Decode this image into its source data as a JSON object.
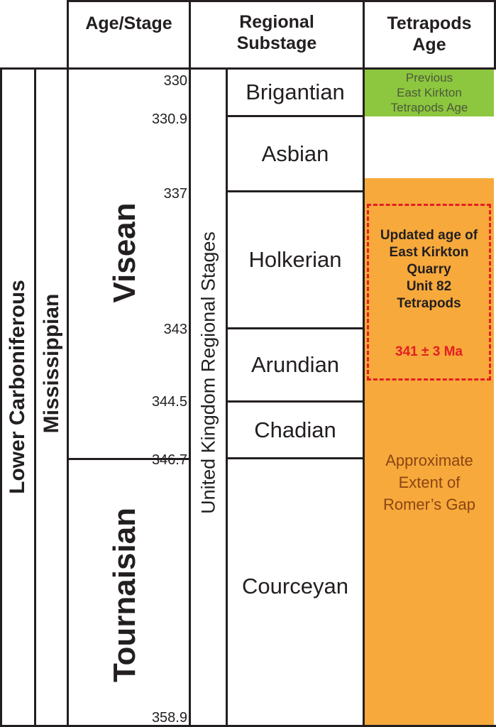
{
  "headers": {
    "age_stage": "Age/Stage",
    "regional_substage": "Regional\nSubstage",
    "tetrapods_age": "Tetrapods\nAge"
  },
  "system": "Lower Carboniferous",
  "subsystem": "Mississippian",
  "epochs": {
    "upper": "Visean",
    "lower": "Tournaisian"
  },
  "regional_column_label": "United Kingdom Regional Stages",
  "substages": [
    "Brigantian",
    "Asbian",
    "Holkerian",
    "Arundian",
    "Chadian",
    "Courceyan"
  ],
  "ages": [
    "330",
    "330.9",
    "337",
    "343",
    "344.5",
    "346.7",
    "358.9"
  ],
  "tetrapods": {
    "previous": "Previous\nEast Kirkton\nTetrapods Age",
    "updated": "Updated age of\nEast Kirkton\nQuarry\nUnit 82\nTetrapods",
    "updated_value": "341 ± 3 Ma",
    "romer": "Approximate\nExtent of\nRomer’s Gap"
  },
  "colors": {
    "previous_green": "#8dc63f",
    "romer_orange": "#f7a93b",
    "dashed_red": "#e31e24",
    "romer_text": "#8b4513"
  }
}
